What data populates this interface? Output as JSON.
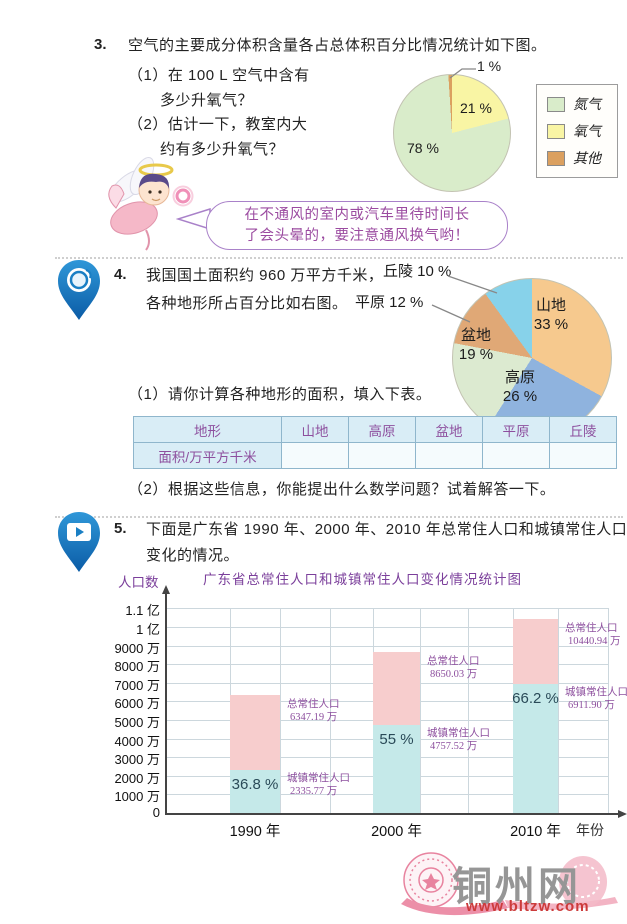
{
  "q3": {
    "number": "3.",
    "prompt": "空气的主要成分体积含量各占总体积百分比情况统计如下图。",
    "sub1_line1": "（1）在 100 L 空气中含有",
    "sub1_line2": "多少升氧气？",
    "sub2_line1": "（2）估计一下，教室内大",
    "sub2_line2": "约有多少升氧气？",
    "pie_labels": {
      "nitrogen": "78 %",
      "oxygen": "21 %",
      "other": "1 %"
    },
    "legend": [
      {
        "label": "氮气",
        "color": "#d9ecca"
      },
      {
        "label": "氧气",
        "color": "#f9f5a4"
      },
      {
        "label": "其他",
        "color": "#dba05f"
      }
    ],
    "bubble_line1": "在不通风的室内或汽车里待时间长",
    "bubble_line2": "了会头晕的，要注意通风换气哟！"
  },
  "q4": {
    "number": "4.",
    "prompt_line1": "我国国土面积约 960 万平方千米，",
    "prompt_line2": "各种地形所占百分比如右图。",
    "pie_labels": {
      "shandi_name": "山地",
      "shandi_pct": "33 %",
      "gaoyuan_name": "高原",
      "gaoyuan_pct": "26 %",
      "pendi_name": "盆地",
      "pendi_pct": "19 %",
      "qiuling": "丘陵 10 %",
      "pingyuan": "平原 12 %"
    },
    "sub1": "（1）请你计算各种地形的面积，填入下表。",
    "sub2": "（2）根据这些信息，你能提出什么数学问题？试着解答一下。",
    "table": {
      "headers": [
        "地形",
        "山地",
        "高原",
        "盆地",
        "平原",
        "丘陵"
      ],
      "row_label": "面积/万平方千米",
      "row_values": [
        "",
        "",
        "",
        "",
        ""
      ]
    }
  },
  "q5": {
    "number": "5.",
    "prompt_line1": "下面是广东省 1990 年、2000 年、2010 年总常住人口和城镇常住人口",
    "prompt_line2": "变化的情况。",
    "chart_ylabel": "人口数",
    "chart_title": "广东省总常住人口和城镇常住人口变化情况统计图",
    "xaxis_label": "年份"
  },
  "watermark": {
    "name": "铜州网",
    "url": "www.bltzw.com"
  },
  "chart_data": [
    {
      "type": "pie",
      "slices": [
        {
          "label": "氧气",
          "value": 21,
          "color": "#f9f5a4"
        },
        {
          "label": "氮气",
          "value": 78,
          "color": "#d9ecca"
        },
        {
          "label": "其他",
          "value": 1,
          "color": "#dba05f"
        }
      ],
      "shown_labels": [
        "21 %",
        "78 %",
        "1 %"
      ],
      "legend_position": "right"
    },
    {
      "type": "pie",
      "slices": [
        {
          "label": "山地",
          "value": 33,
          "color": "#f6c98e"
        },
        {
          "label": "高原",
          "value": 26,
          "color": "#8fb3de"
        },
        {
          "label": "盆地",
          "value": 19,
          "color": "#dcead0"
        },
        {
          "label": "平原",
          "value": 12,
          "color": "#e0a876"
        },
        {
          "label": "丘陵",
          "value": 10,
          "color": "#87d2ea"
        }
      ],
      "shown_labels": [
        "山地 33 %",
        "高原 26 %",
        "盆地 19 %",
        "平原 12 %",
        "丘陵 10 %"
      ]
    },
    {
      "type": "bar",
      "title": "广东省总常住人口和城镇常住人口变化情况统计图",
      "ylabel": "人口数",
      "xlabel": "年份",
      "categories": [
        "1990 年",
        "2000 年",
        "2010 年"
      ],
      "series": [
        {
          "name": "总常住人口",
          "values": [
            6347.19,
            8650.03,
            10440.94
          ],
          "unit": "万",
          "color": "#f7cdcd"
        },
        {
          "name": "城镇常住人口",
          "values": [
            2335.77,
            4757.52,
            6911.9
          ],
          "unit": "万",
          "color": "#c5e9e9"
        }
      ],
      "value_labels": {
        "total": [
          "6347.19 万",
          "8650.03 万",
          "10440.94 万"
        ],
        "urban": [
          "2335.77 万",
          "4757.52 万",
          "6911.90 万"
        ]
      },
      "urban_share_labels": [
        "36.8 %",
        "55 %",
        "66.2 %"
      ],
      "ylim": [
        0,
        11000
      ],
      "ytick_labels": [
        "0",
        "1000 万",
        "2000 万",
        "3000 万",
        "4000 万",
        "5000 万",
        "6000 万",
        "7000 万",
        "8000 万",
        "9000 万",
        "1 亿",
        "1.1 亿"
      ],
      "grid": true
    }
  ]
}
